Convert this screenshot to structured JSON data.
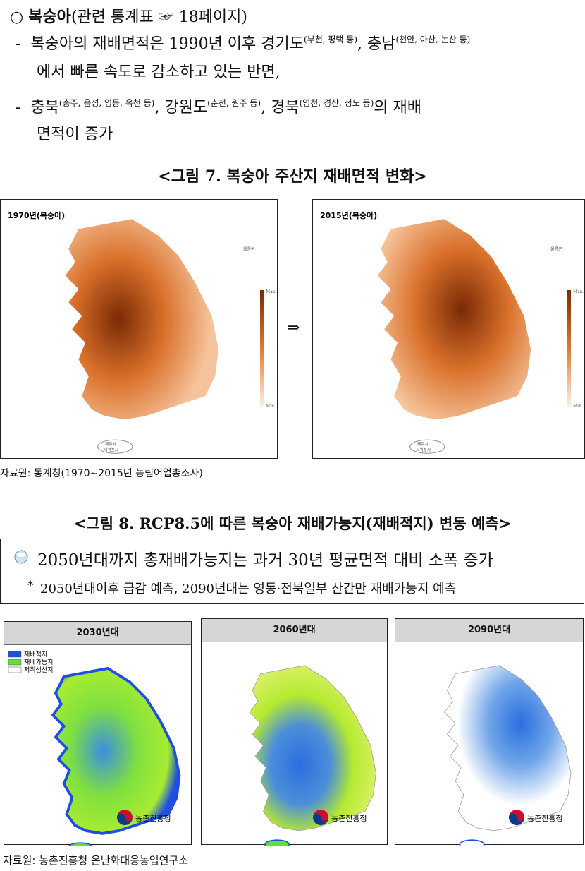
{
  "section": {
    "marker": "○",
    "title": "복숭아",
    "ref": "(관련 통계표 ☞ 18페이지)"
  },
  "bullets": [
    {
      "dash": "-",
      "parts": [
        {
          "text": "복숭아의 재배면적은 1990년 이후 경기도",
          "sup": false
        },
        {
          "text": "(부천, 평택 등)",
          "sup": true
        },
        {
          "text": ", 충남",
          "sup": false
        },
        {
          "text": "(천안, 아산, 논산 등)",
          "sup": true
        }
      ],
      "continuation": "에서 빠른 속도로 감소하고 있는 반면,"
    },
    {
      "dash": "-",
      "parts": [
        {
          "text": "충북",
          "sup": false
        },
        {
          "text": "(충주, 음성, 영동, 옥천 등)",
          "sup": true
        },
        {
          "text": ", 강원도",
          "sup": false
        },
        {
          "text": "(춘천, 원주 등)",
          "sup": true
        },
        {
          "text": ", 경북",
          "sup": false
        },
        {
          "text": "(영천, 경산, 청도 등)",
          "sup": true
        },
        {
          "text": "의 재배",
          "sup": false
        }
      ],
      "continuation": "면적이 증가"
    }
  ],
  "figure7": {
    "title": "<그림 7. 복숭아 주산지 재배면적 변화>",
    "maps": [
      {
        "label": "1970년(복숭아)",
        "max": "Max.",
        "min": "Min.",
        "island": "울릉군",
        "jeju": "제주시",
        "seogwipo": "서귀포시"
      },
      {
        "label": "2015년(복숭아)",
        "max": "Max.",
        "min": "Min.",
        "island": "울릉군",
        "jeju": "제주시",
        "seogwipo": "서귀포시"
      }
    ],
    "arrow": "⇒",
    "source": "자료원: 통계청(1970∼2015년 농림어업총조사)"
  },
  "figure8": {
    "title": "<그림 8. RCP8.5에 따른 복숭아 재배가능지(재배적지) 변동 예측>",
    "summary": "2050년대까지 총재배가능지는 과거 30년 평균면적 대비 소폭 증가",
    "note_marker": "*",
    "note": "2050년대이후 급감 예측, 2090년대는 영동·전북일부 산간만 재배가능지 예측",
    "legend": [
      {
        "label": "재배적지",
        "color": "#1f4fe0"
      },
      {
        "label": "재배가능지",
        "color": "#5fe13a"
      },
      {
        "label": "저위생산지",
        "color": "#ffffff"
      }
    ],
    "panels": [
      {
        "title": "2030년대",
        "logo": "농촌진흥청"
      },
      {
        "title": "2060년대",
        "logo": "농촌진흥청"
      },
      {
        "title": "2090년대",
        "logo": "농촌진흥청"
      }
    ],
    "source": "자료원: 농촌진흥청 온난화대응농업연구소"
  }
}
